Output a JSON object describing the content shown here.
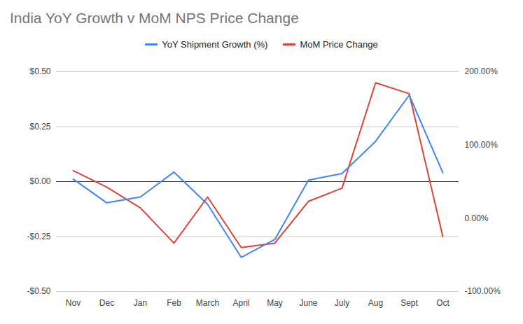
{
  "chart_data": {
    "type": "line",
    "title": "India YoY Growth v MoM NPS Price Change",
    "categories": [
      "Nov",
      "Dec",
      "Jan",
      "Feb",
      "March",
      "April",
      "May",
      "June",
      "July",
      "Aug",
      "Sept",
      "Oct"
    ],
    "series": [
      {
        "name": "YoY Shipment Growth (%)",
        "color": "#4285f4",
        "axis": "y2",
        "values": [
          53.5,
          21,
          29,
          63,
          19,
          -53.5,
          -29,
          52,
          61,
          105,
          168,
          62
        ]
      },
      {
        "name": "MoM Price Change",
        "color": "#db4437",
        "values": [
          0.05,
          -0.025,
          -0.12,
          -0.28,
          -0.07,
          -0.3,
          -0.28,
          -0.09,
          -0.03,
          0.45,
          0.4,
          -0.25
        ]
      }
    ],
    "ylim": [
      -0.5,
      0.5
    ],
    "yticks": [
      {
        "value": -0.5,
        "label": "-$0.50"
      },
      {
        "value": -0.25,
        "label": "-$0.25"
      },
      {
        "value": 0,
        "label": "$0.00"
      },
      {
        "value": 0.25,
        "label": "$0.25"
      },
      {
        "value": 0.5,
        "label": "$0.50"
      }
    ],
    "y2lim": [
      -100,
      200
    ],
    "y2ticks": [
      {
        "value": -100,
        "label": "-100.00%"
      },
      {
        "value": 0,
        "label": "0.00%"
      },
      {
        "value": 100,
        "label": "100.00%"
      },
      {
        "value": 200,
        "label": "200.00%"
      }
    ],
    "grid": true,
    "legend": "top"
  }
}
